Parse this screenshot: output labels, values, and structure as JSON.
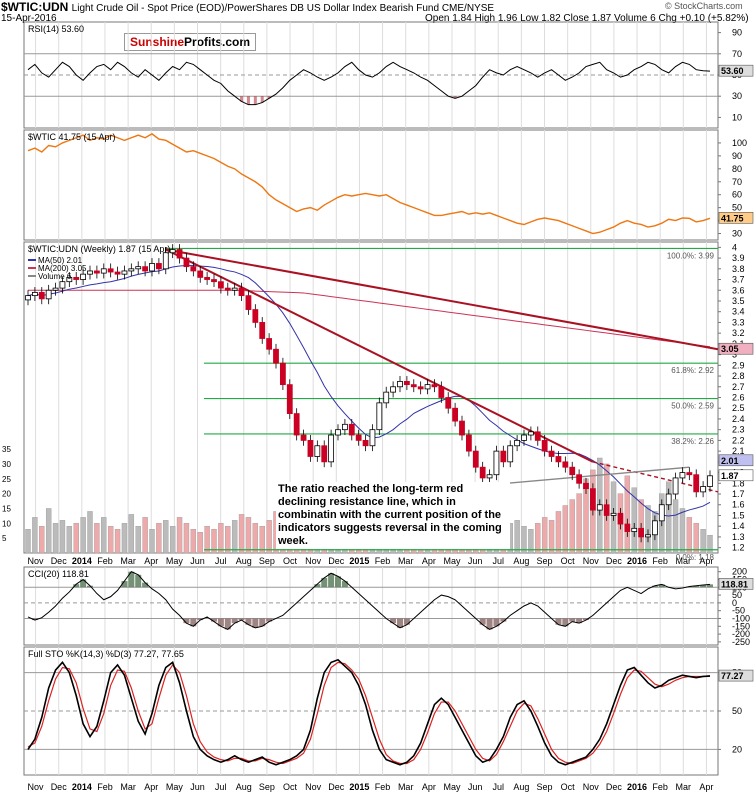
{
  "header": {
    "symbol": "$WTIC:UDN",
    "description": "Light Crude Oil - Spot Price (EOD)/PowerShares DB US Dollar Index Bearish Fund CME/NYSE",
    "date": "15-Apr-2016",
    "ohlc": "Open 1.84  High 1.96  Low 1.82  Close 1.87  Volume 6  Chg +0.10 (+5.82%)",
    "copyright": "© StockCharts.com"
  },
  "logo": {
    "part1": "Sunshine",
    "part2": "Profits.com"
  },
  "annotation": "The ratio reached the long-term red declining resistance line, which in combinatin with the current position of the indicators suggests reversal in the coming week.",
  "colors": {
    "up": "#ffffff",
    "down": "#cc0022",
    "fib": "#22aa44",
    "trend": "#aa1122",
    "ma50": "#3333aa",
    "ma200": "#cc3355",
    "wtic": "#ee7711",
    "vol_up": "#bbbbbb",
    "vol_down": "#eeaaaa"
  },
  "chart_data": [
    {
      "type": "line",
      "title": "RSI(14) 53.60",
      "ylim": [
        0,
        100
      ],
      "yticks": [
        10,
        30,
        50,
        70,
        90
      ],
      "reference_lines": [
        30,
        50,
        70
      ],
      "last_label": "53.60",
      "values": [
        55,
        60,
        52,
        48,
        55,
        62,
        58,
        50,
        45,
        52,
        58,
        60,
        55,
        62,
        58,
        52,
        48,
        55,
        50,
        45,
        52,
        58,
        55,
        62,
        60,
        55,
        50,
        45,
        42,
        35,
        30,
        25,
        22,
        22,
        24,
        28,
        32,
        38,
        45,
        50,
        55,
        52,
        48,
        45,
        48,
        52,
        58,
        62,
        55,
        50,
        48,
        52,
        58,
        62,
        58,
        55,
        52,
        48,
        45,
        40,
        35,
        30,
        28,
        30,
        35,
        40,
        48,
        55,
        52,
        50,
        55,
        58,
        55,
        52,
        48,
        52,
        55,
        50,
        45,
        48,
        52,
        58,
        60,
        62,
        55,
        52,
        48,
        50,
        55,
        58,
        62,
        60,
        55,
        52,
        58,
        62,
        60,
        55,
        54,
        53.6
      ]
    },
    {
      "type": "line",
      "title": "$WTIC 41.75 (15 Apr)",
      "ylim": [
        25,
        110
      ],
      "yticks": [
        30,
        40,
        50,
        60,
        70,
        80,
        90,
        100
      ],
      "last_label": "41.75",
      "values": [
        94,
        96,
        93,
        98,
        97,
        100,
        102,
        104,
        106,
        102,
        104,
        103,
        106,
        104,
        102,
        104,
        106,
        104,
        107,
        103,
        102,
        99,
        96,
        93,
        94,
        92,
        90,
        88,
        85,
        82,
        80,
        76,
        73,
        70,
        66,
        60,
        56,
        53,
        50,
        47,
        49,
        50,
        48,
        52,
        55,
        58,
        60,
        59,
        60,
        61,
        60,
        59,
        60,
        57,
        54,
        52,
        50,
        48,
        46,
        44,
        44,
        45,
        46,
        47,
        45,
        46,
        45,
        46,
        44,
        42,
        40,
        38,
        37,
        39,
        41,
        42,
        41,
        40,
        38,
        36,
        34,
        32,
        30,
        31,
        33,
        35,
        38,
        40,
        38,
        37,
        35,
        36,
        38,
        41,
        40,
        42,
        41.75,
        39,
        40,
        41.75
      ]
    },
    {
      "type": "candlestick",
      "title": "$WTIC:UDN (Weekly) 1.87 (15 Apr)",
      "legend": [
        "MA(50) 2.01",
        "MA(200) 3.05",
        "Volume 6"
      ],
      "ylim": [
        1.15,
        4.05
      ],
      "yticks": [
        1.2,
        1.3,
        1.4,
        1.5,
        1.6,
        1.7,
        1.8,
        1.9,
        2.0,
        2.1,
        2.2,
        2.3,
        2.4,
        2.5,
        2.6,
        2.7,
        2.8,
        2.9,
        3.0,
        3.1,
        3.2,
        3.3,
        3.4,
        3.5,
        3.6,
        3.7,
        3.8,
        3.9,
        4.0
      ],
      "price_labels": [
        "3.05",
        "2.01",
        "1.87"
      ],
      "fibonacci": [
        {
          "label": "100.0%: 3.99",
          "value": 3.99
        },
        {
          "label": "61.8%: 2.92",
          "value": 2.92
        },
        {
          "label": "50.0%: 2.59",
          "value": 2.59
        },
        {
          "label": "38.2%: 2.26",
          "value": 2.26
        },
        {
          "label": "0.0%: 1.18",
          "value": 1.18
        }
      ],
      "closes": [
        3.55,
        3.58,
        3.52,
        3.6,
        3.62,
        3.68,
        3.72,
        3.7,
        3.75,
        3.78,
        3.76,
        3.8,
        3.77,
        3.75,
        3.78,
        3.8,
        3.82,
        3.78,
        3.85,
        3.8,
        3.95,
        3.98,
        3.9,
        3.82,
        3.78,
        3.72,
        3.7,
        3.68,
        3.62,
        3.6,
        3.62,
        3.55,
        3.42,
        3.3,
        3.15,
        3.05,
        2.92,
        2.72,
        2.45,
        2.25,
        2.2,
        2.05,
        2.15,
        2.0,
        2.25,
        2.3,
        2.35,
        2.25,
        2.2,
        2.15,
        2.3,
        2.55,
        2.65,
        2.7,
        2.75,
        2.72,
        2.7,
        2.68,
        2.72,
        2.7,
        2.6,
        2.5,
        2.38,
        2.25,
        2.1,
        1.95,
        1.85,
        1.88,
        2.1,
        2.0,
        2.15,
        2.2,
        2.25,
        2.28,
        2.2,
        2.1,
        2.05,
        2.0,
        1.95,
        1.88,
        1.8,
        1.75,
        1.55,
        1.6,
        1.5,
        1.52,
        1.42,
        1.35,
        1.38,
        1.3,
        1.32,
        1.45,
        1.6,
        1.7,
        1.85,
        1.9,
        1.88,
        1.72,
        1.77,
        1.87
      ],
      "volumes": [
        8,
        12,
        9,
        15,
        10,
        11,
        9,
        10,
        12,
        14,
        10,
        12,
        9,
        8,
        10,
        13,
        9,
        12,
        8,
        10,
        11,
        9,
        12,
        10,
        8,
        7,
        9,
        8,
        10,
        9,
        11,
        13,
        12,
        10,
        9,
        11,
        14,
        12,
        10,
        9,
        8,
        7,
        9,
        10,
        8,
        11,
        9,
        12,
        10,
        8,
        9,
        10,
        12,
        11,
        9,
        10,
        8,
        9,
        10,
        11,
        9,
        12,
        10,
        9,
        11,
        13,
        12,
        10,
        8,
        9,
        10,
        11,
        9,
        8,
        10,
        12,
        11,
        14,
        16,
        18,
        20,
        25,
        28,
        32,
        30,
        24,
        20,
        26,
        22,
        18,
        16,
        14,
        20,
        24,
        18,
        15,
        12,
        10,
        8,
        6
      ]
    },
    {
      "type": "area",
      "title": "CCI(20) 118.81",
      "ylim": [
        -270,
        230
      ],
      "yticks": [
        -250,
        -200,
        -150,
        -100,
        -50,
        0,
        50,
        100,
        150,
        200
      ],
      "reference_lines": [
        -100,
        0,
        100
      ],
      "last_label": "118.81",
      "values": [
        -90,
        -110,
        -95,
        -60,
        -20,
        30,
        70,
        120,
        150,
        110,
        60,
        20,
        40,
        80,
        140,
        200,
        180,
        130,
        90,
        60,
        20,
        -40,
        -80,
        -130,
        -150,
        -110,
        -90,
        -120,
        -150,
        -170,
        -130,
        -110,
        -140,
        -160,
        -150,
        -120,
        -100,
        -80,
        -40,
        0,
        40,
        80,
        120,
        160,
        190,
        170,
        140,
        100,
        60,
        20,
        -20,
        -60,
        -100,
        -130,
        -160,
        -140,
        -100,
        -60,
        -20,
        20,
        50,
        40,
        20,
        -20,
        -60,
        -100,
        -140,
        -170,
        -150,
        -120,
        -80,
        -50,
        -20,
        0,
        -20,
        -60,
        -100,
        -140,
        -150,
        -120,
        -130,
        -110,
        -80,
        -40,
        0,
        40,
        80,
        100,
        80,
        60,
        90,
        110,
        118.81,
        100,
        90,
        95,
        105,
        110,
        115,
        118.81
      ]
    },
    {
      "type": "line",
      "title": "Full STO %K(14,3) %D(3) 77.27, 77.65",
      "ylim": [
        0,
        100
      ],
      "yticks": [
        20,
        50,
        80
      ],
      "reference_lines": [
        20,
        50,
        80
      ],
      "series": [
        {
          "name": "%K(14,3) 77.27",
          "values": [
            20,
            28,
            45,
            68,
            82,
            88,
            80,
            62,
            40,
            30,
            38,
            58,
            80,
            86,
            78,
            60,
            42,
            32,
            48,
            70,
            84,
            88,
            72,
            50,
            30,
            20,
            15,
            12,
            10,
            12,
            15,
            12,
            10,
            12,
            14,
            10,
            8,
            10,
            12,
            15,
            20,
            35,
            60,
            80,
            88,
            90,
            85,
            80,
            70,
            55,
            35,
            20,
            12,
            10,
            8,
            10,
            15,
            25,
            40,
            55,
            60,
            55,
            45,
            35,
            25,
            15,
            10,
            12,
            20,
            30,
            45,
            55,
            58,
            50,
            38,
            25,
            15,
            10,
            8,
            10,
            12,
            14,
            20,
            28,
            40,
            55,
            70,
            82,
            84,
            78,
            72,
            68,
            70,
            74,
            76,
            78,
            77,
            76,
            77,
            77.27
          ]
        },
        {
          "name": "%D(3) 77.65",
          "values": [
            22,
            25,
            38,
            58,
            75,
            84,
            83,
            72,
            52,
            36,
            34,
            48,
            70,
            82,
            81,
            68,
            50,
            36,
            40,
            60,
            78,
            86,
            80,
            62,
            40,
            26,
            18,
            14,
            12,
            11,
            13,
            13,
            11,
            11,
            13,
            12,
            10,
            9,
            11,
            13,
            17,
            28,
            48,
            70,
            84,
            88,
            87,
            82,
            75,
            62,
            45,
            28,
            16,
            11,
            9,
            9,
            12,
            20,
            33,
            48,
            57,
            57,
            50,
            40,
            30,
            20,
            13,
            11,
            16,
            26,
            38,
            50,
            56,
            54,
            44,
            32,
            20,
            13,
            10,
            9,
            11,
            13,
            17,
            24,
            34,
            48,
            63,
            76,
            82,
            81,
            76,
            71,
            69,
            71,
            74,
            76,
            77,
            77,
            77,
            77.65
          ]
        }
      ]
    }
  ],
  "x_axis": {
    "labels": [
      "Nov",
      "Dec",
      "2014",
      "Feb",
      "Mar",
      "Apr",
      "May",
      "Jun",
      "Jul",
      "Aug",
      "Sep",
      "Oct",
      "Nov",
      "Dec",
      "2015",
      "Feb",
      "Mar",
      "Apr",
      "May",
      "Jun",
      "Jul",
      "Aug",
      "Sep",
      "Oct",
      "Nov",
      "Dec",
      "2016",
      "Feb",
      "Mar",
      "Apr"
    ],
    "bold": [
      "2014",
      "2015",
      "2016"
    ]
  }
}
